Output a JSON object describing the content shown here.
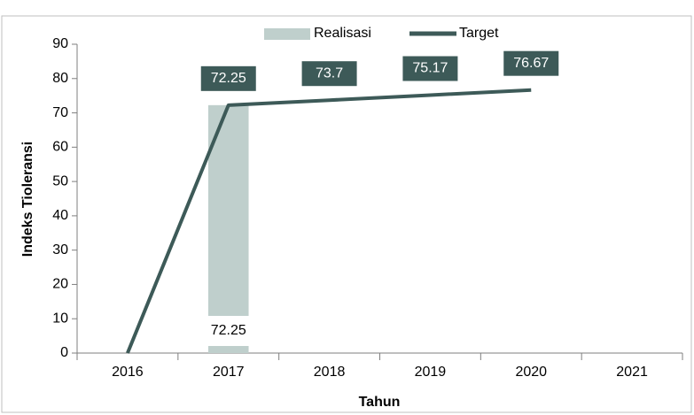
{
  "chart_data": {
    "type": "combo",
    "categories": [
      "2016",
      "2017",
      "2018",
      "2019",
      "2020",
      "2021"
    ],
    "series": [
      {
        "name": "Realisasi",
        "type": "bar",
        "color": "#bfcfcc",
        "values": [
          null,
          72.25,
          null,
          null,
          null,
          null
        ],
        "value_labels": [
          null,
          "72.25",
          null,
          null,
          null,
          null
        ]
      },
      {
        "name": "Target",
        "type": "line",
        "color": "#3d5a58",
        "values": [
          0,
          72.25,
          73.7,
          75.17,
          76.67,
          null
        ],
        "value_labels": [
          null,
          "72.25",
          "73.7",
          "75.17",
          "76.67",
          null
        ]
      }
    ],
    "ylim": [
      0,
      90
    ],
    "yticks": [
      0,
      10,
      20,
      30,
      40,
      50,
      60,
      70,
      80,
      90
    ],
    "ylabel": "Indeks Tioleransi",
    "xlabel": "Tahun",
    "legend": "top"
  }
}
